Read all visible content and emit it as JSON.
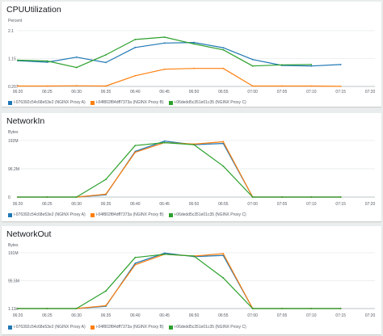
{
  "chart_data": [
    {
      "type": "line",
      "title": "CPUUtilization",
      "ylabel": "Percent",
      "ylim": [
        0.207,
        2.1
      ],
      "yticks": [
        2.1,
        1.15,
        0.207
      ],
      "ytick_labels": [
        "2.1",
        "1.15",
        "0.207"
      ],
      "x": [
        "06:20",
        "06:25",
        "06:30",
        "06:35",
        "06:40",
        "06:45",
        "06:50",
        "06:55",
        "07:00",
        "07:05",
        "07:10",
        "07:15",
        "07:20"
      ],
      "grid": true,
      "legend_position": "bottom",
      "series": [
        {
          "name": "i-076392c54c68e53e2 (NGINX Proxy A)",
          "color": "#1f77b4",
          "values": [
            1.08,
            1.03,
            1.2,
            1.02,
            1.53,
            1.68,
            1.7,
            1.52,
            1.12,
            0.92,
            0.9,
            0.95,
            null
          ]
        },
        {
          "name": "i-04f802f84dff7373a (NGINX Proxy B)",
          "color": "#ff7f0e",
          "values": [
            0.22,
            0.22,
            0.23,
            0.22,
            0.57,
            0.79,
            0.82,
            0.82,
            0.22,
            0.22,
            0.22,
            0.21,
            null
          ]
        },
        {
          "name": "i-06dedd5c351e01c35 (NGINX Proxy C)",
          "color": "#2ca02c",
          "values": [
            1.1,
            1.07,
            0.85,
            1.28,
            1.8,
            1.88,
            1.65,
            1.45,
            0.9,
            0.94,
            0.95,
            null,
            null
          ]
        }
      ]
    },
    {
      "type": "line",
      "title": "NetworkIn",
      "ylabel": "Bytes",
      "ylim": [
        0,
        192
      ],
      "yticks": [
        192,
        96.2,
        0
      ],
      "ytick_labels": [
        "192M",
        "96.2M",
        "0"
      ],
      "x": [
        "06:20",
        "06:25",
        "06:30",
        "06:35",
        "06:40",
        "06:45",
        "06:50",
        "06:55",
        "07:00",
        "07:05",
        "07:10",
        "07:15",
        "07:20"
      ],
      "grid": true,
      "legend_position": "bottom",
      "series": [
        {
          "name": "i-076392c54c68e53e2 (NGINX Proxy A)",
          "color": "#1f77b4",
          "values": [
            0,
            0,
            0,
            8,
            155,
            190,
            178,
            182,
            0,
            0,
            0,
            0,
            null
          ]
        },
        {
          "name": "i-04f802f84dff7373a (NGINX Proxy B)",
          "color": "#ff7f0e",
          "values": [
            0,
            0,
            0,
            10,
            152,
            185,
            180,
            188,
            0,
            0,
            0,
            0,
            null
          ]
        },
        {
          "name": "i-06dedd5c351e01c35 (NGINX Proxy C)",
          "color": "#2ca02c",
          "values": [
            0,
            0,
            0,
            60,
            175,
            185,
            178,
            105,
            0,
            0,
            0,
            0,
            null
          ]
        }
      ]
    },
    {
      "type": "line",
      "title": "NetworkOut",
      "ylabel": "Bytes",
      "ylim": [
        0,
        191
      ],
      "yticks": [
        191,
        95.5,
        0
      ],
      "ytick_labels": [
        "191M",
        "95.5M",
        "1.11k"
      ],
      "x": [
        "06:20",
        "06:25",
        "06:30",
        "06:35",
        "06:40",
        "06:45",
        "06:50",
        "06:55",
        "07:00",
        "07:05",
        "07:10",
        "07:15",
        "07:20"
      ],
      "grid": true,
      "legend_position": "bottom",
      "series": [
        {
          "name": "i-076392c54c68e53e2 (NGINX Proxy A)",
          "color": "#1f77b4",
          "values": [
            0,
            0,
            0,
            8,
            155,
            190,
            178,
            182,
            0,
            0,
            0,
            0,
            null
          ]
        },
        {
          "name": "i-04f802f84dff7373a (NGINX Proxy B)",
          "color": "#ff7f0e",
          "values": [
            0,
            0,
            0,
            10,
            150,
            186,
            180,
            188,
            0,
            0,
            0,
            0,
            null
          ]
        },
        {
          "name": "i-06dedd5c351e01c35 (NGINX Proxy C)",
          "color": "#2ca02c",
          "values": [
            0,
            0,
            0,
            60,
            175,
            186,
            180,
            105,
            0,
            0,
            0,
            0,
            null
          ]
        }
      ]
    }
  ]
}
